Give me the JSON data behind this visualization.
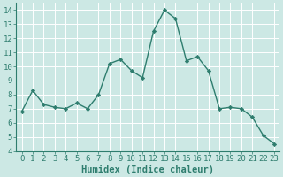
{
  "x": [
    0,
    1,
    2,
    3,
    4,
    5,
    6,
    7,
    8,
    9,
    10,
    11,
    12,
    13,
    14,
    15,
    16,
    17,
    18,
    19,
    20,
    21,
    22,
    23
  ],
  "y": [
    6.8,
    8.3,
    7.3,
    7.1,
    7.0,
    7.4,
    7.0,
    8.0,
    10.2,
    10.5,
    9.7,
    9.2,
    12.5,
    14.0,
    13.4,
    10.4,
    10.7,
    9.7,
    7.0,
    7.1,
    7.0,
    6.4,
    5.1,
    4.5
  ],
  "line_color": "#2e7d6e",
  "marker": "D",
  "marker_size": 2.2,
  "line_width": 1.0,
  "bg_color": "#cce8e4",
  "grid_color": "#ffffff",
  "xlabel": "Humidex (Indice chaleur)",
  "xlabel_fontsize": 7.5,
  "ylim": [
    4,
    14.5
  ],
  "xlim": [
    -0.5,
    23.5
  ],
  "yticks": [
    4,
    5,
    6,
    7,
    8,
    9,
    10,
    11,
    12,
    13,
    14
  ],
  "xticks": [
    0,
    1,
    2,
    3,
    4,
    5,
    6,
    7,
    8,
    9,
    10,
    11,
    12,
    13,
    14,
    15,
    16,
    17,
    18,
    19,
    20,
    21,
    22,
    23
  ],
  "tick_fontsize": 6.5,
  "spine_color": "#2e7d6e"
}
